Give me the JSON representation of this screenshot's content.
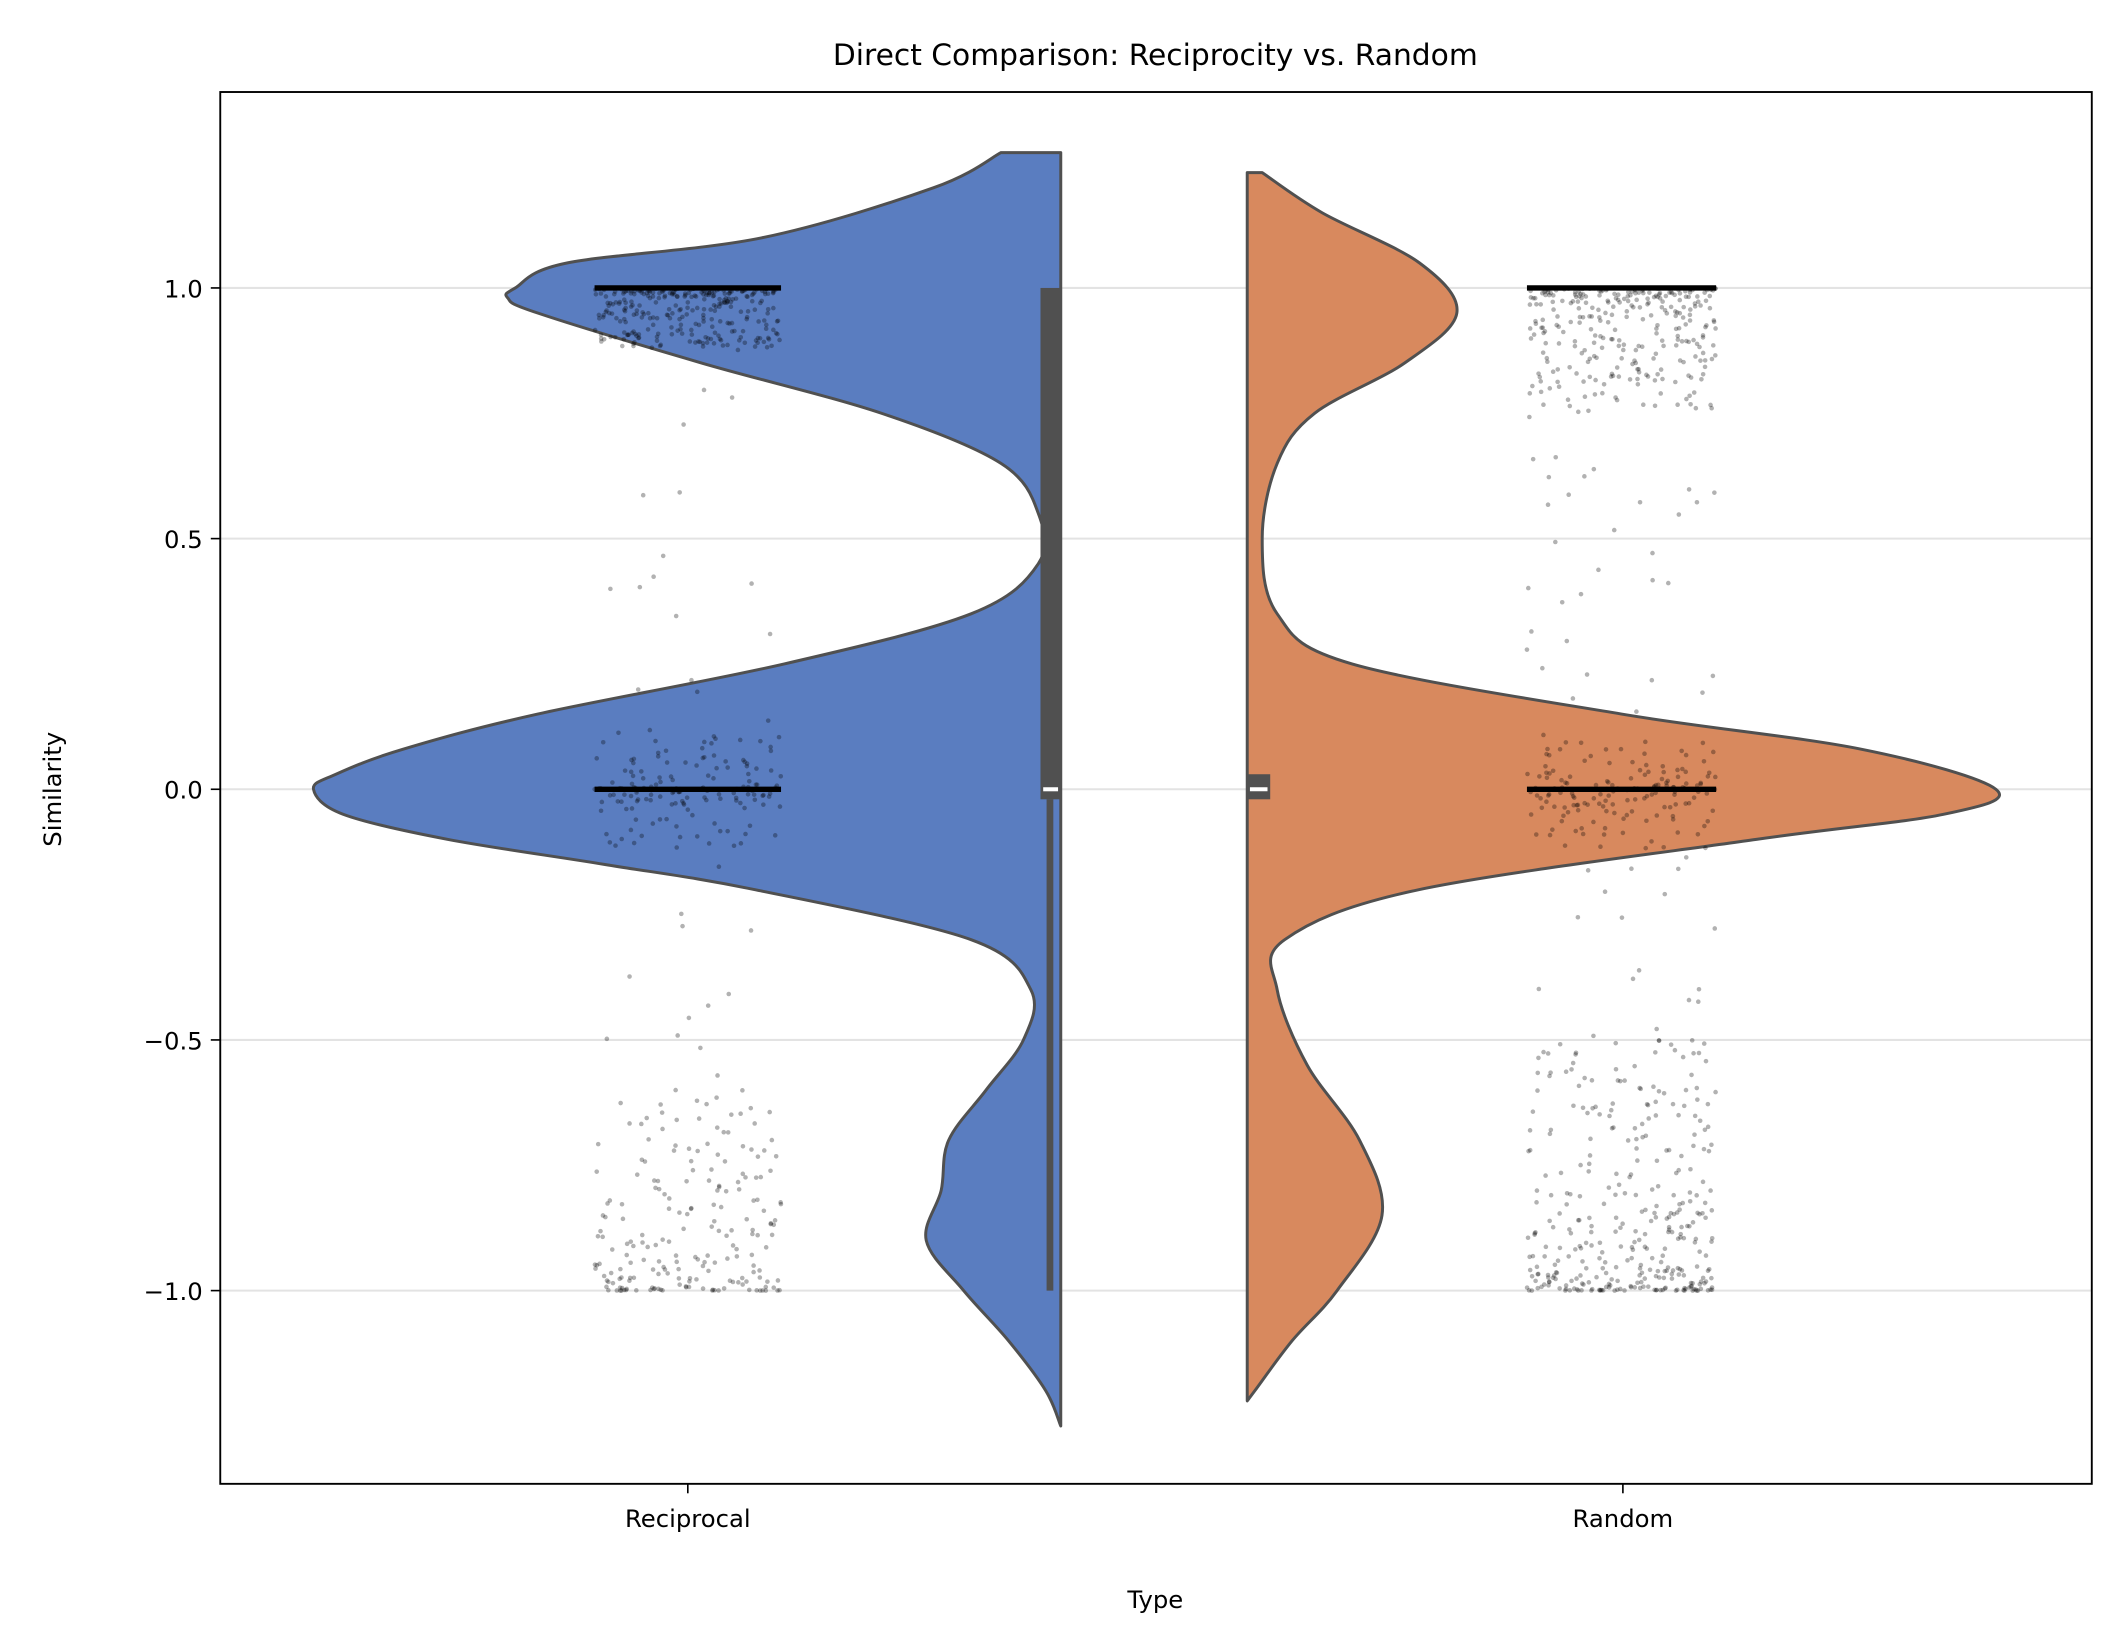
{
  "chart_data": {
    "type": "violin",
    "title": "Direct Comparison: Reciprocity vs. Random",
    "xlabel": "Type",
    "ylabel": "Similarity",
    "categories": [
      "Reciprocal",
      "Random"
    ],
    "ylim": [
      -1.38,
      1.4
    ],
    "yticks": [
      -1.0,
      -0.5,
      0.0,
      0.5,
      1.0
    ],
    "ytick_labels": [
      "−1.0",
      "−0.5",
      "0.0",
      "0.5",
      "1.0"
    ],
    "grid": "horizontal",
    "split": true,
    "series": [
      {
        "category": "Reciprocal",
        "color": "#5a7dc0",
        "side": "left",
        "density_profile": {
          "y": [
            1.27,
            1.2,
            1.1,
            1.05,
            1.0,
            0.98,
            0.95,
            0.85,
            0.75,
            0.65,
            0.55,
            0.45,
            0.35,
            0.25,
            0.15,
            0.08,
            0.03,
            0.0,
            -0.05,
            -0.1,
            -0.15,
            -0.2,
            -0.3,
            -0.4,
            -0.5,
            -0.6,
            -0.7,
            -0.8,
            -0.9,
            -1.0,
            -1.1,
            -1.2,
            -1.27
          ],
          "density": [
            0.08,
            0.17,
            0.4,
            0.66,
            0.73,
            0.74,
            0.7,
            0.48,
            0.24,
            0.08,
            0.03,
            0.03,
            0.12,
            0.37,
            0.7,
            0.88,
            0.97,
            1.0,
            0.96,
            0.82,
            0.61,
            0.41,
            0.12,
            0.04,
            0.05,
            0.1,
            0.15,
            0.16,
            0.18,
            0.13,
            0.07,
            0.02,
            0.0
          ]
        },
        "box": {
          "q1": -0.02,
          "median": 0.0,
          "q3": 1.0,
          "whisker_low": -1.0,
          "whisker_high": 1.0
        },
        "strip_clusters": [
          {
            "center": 1.0,
            "spread": 0.12,
            "count": 330,
            "side": "below"
          },
          {
            "center": 0.0,
            "spread": 0.12,
            "count": 160,
            "side": "both"
          },
          {
            "center": -1.0,
            "spread": 0.4,
            "count": 190,
            "side": "above"
          },
          {
            "center": 0.0,
            "spread": 1.0,
            "count": 50,
            "side": "both"
          }
        ]
      },
      {
        "category": "Random",
        "color": "#d8895e",
        "side": "right",
        "density_profile": {
          "y": [
            1.23,
            1.15,
            1.05,
            0.95,
            0.85,
            0.75,
            0.65,
            0.5,
            0.35,
            0.25,
            0.15,
            0.08,
            0.0,
            -0.05,
            -0.1,
            -0.2,
            -0.3,
            -0.4,
            -0.55,
            -0.7,
            -0.85,
            -1.0,
            -1.1,
            -1.2,
            -1.22
          ],
          "density": [
            0.02,
            0.1,
            0.23,
            0.28,
            0.21,
            0.09,
            0.04,
            0.02,
            0.04,
            0.14,
            0.5,
            0.82,
            1.0,
            0.93,
            0.68,
            0.23,
            0.05,
            0.04,
            0.08,
            0.15,
            0.18,
            0.12,
            0.06,
            0.01,
            0.0
          ]
        },
        "box": {
          "q1": -0.02,
          "median": 0.0,
          "q3": 0.03,
          "whisker_low": -0.02,
          "whisker_high": 0.03
        },
        "strip_clusters": [
          {
            "center": 1.0,
            "spread": 0.25,
            "count": 300,
            "side": "below"
          },
          {
            "center": 0.0,
            "spread": 0.12,
            "count": 160,
            "side": "both"
          },
          {
            "center": -1.0,
            "spread": 0.5,
            "count": 330,
            "side": "above"
          },
          {
            "center": 0.0,
            "spread": 1.0,
            "count": 70,
            "side": "both"
          }
        ]
      }
    ]
  }
}
